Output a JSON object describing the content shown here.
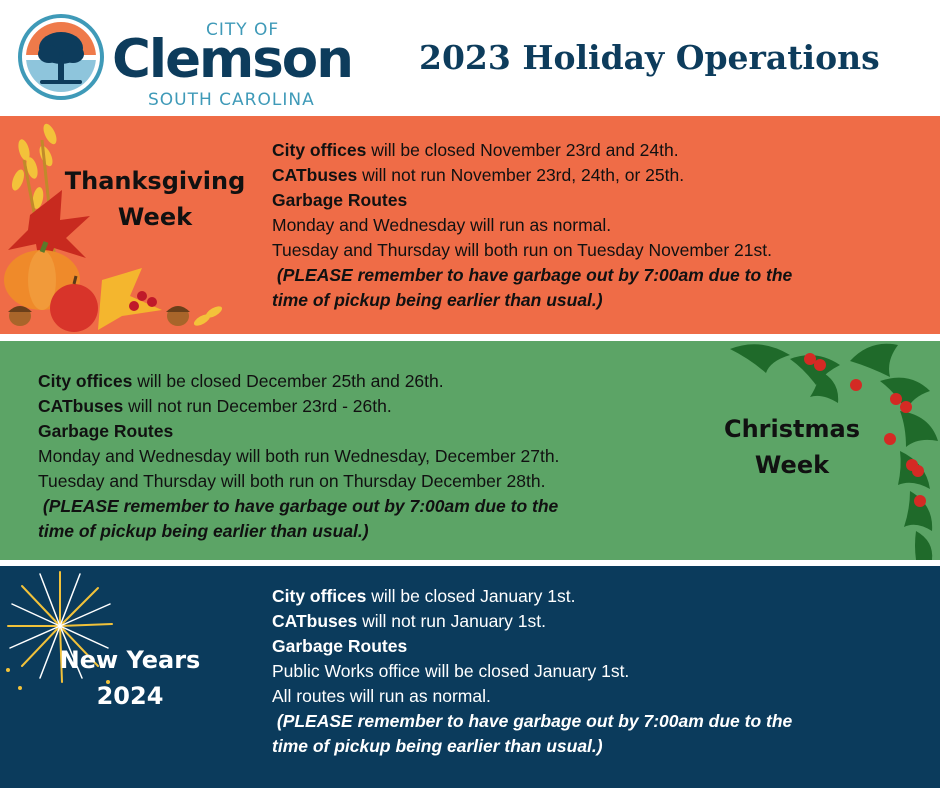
{
  "header": {
    "logo": {
      "city_of": "CITY OF",
      "name": "Clemson",
      "state": "SOUTH CAROLINA"
    },
    "title": "2023 Holiday Operations"
  },
  "colors": {
    "thanksgiving_bg": "#ef6c47",
    "christmas_bg": "#5ca466",
    "newyear_bg": "#0b3b5c",
    "brand_navy": "#0d3c5c",
    "brand_teal": "#3f9ab8"
  },
  "sections": {
    "thanksgiving": {
      "title_line1": "Thanksgiving",
      "title_line2": "Week",
      "offices_label": "City offices",
      "offices_text": " will be closed November 23rd and 24th.",
      "buses_label": "CATbuses",
      "buses_text": " will not run November 23rd, 24th, or 25th.",
      "garbage_label": "Garbage Routes",
      "line1": "Monday and Wednesday will run as normal.",
      "line2": "Tuesday and Thursday will both run on Tuesday November 21st.",
      "note1": " (PLEASE remember to have garbage out by 7:00am due to the",
      "note2": "time of pickup being earlier than usual.)",
      "decoration": "autumn-harvest-icon"
    },
    "christmas": {
      "title_line1": "Christmas",
      "title_line2": "Week",
      "offices_label": "City offices",
      "offices_text": " will be closed December 25th and 26th.",
      "buses_label": "CATbuses",
      "buses_text": " will not run December 23rd - 26th.",
      "garbage_label": "Garbage Routes",
      "line1": "Monday and Wednesday will both run Wednesday, December 27th.",
      "line2": "Tuesday and Thursday will both run on Thursday December 28th.",
      "note1": " (PLEASE remember to have garbage out by 7:00am due to the",
      "note2": "time of pickup being earlier than usual.)",
      "decoration": "holly-icon"
    },
    "newyear": {
      "title_line1": "New Years",
      "title_line2": "2024",
      "offices_label": "City offices",
      "offices_text": " will be closed January 1st.",
      "buses_label": "CATbuses",
      "buses_text": " will not run January 1st.",
      "garbage_label": "Garbage Routes",
      "line1": "Public Works office will be closed January 1st.",
      "line2": "All routes will run as normal.",
      "note1": " (PLEASE remember to have garbage out by 7:00am due to the",
      "note2": "time of pickup being earlier than usual.)",
      "decoration": "firework-icon"
    }
  }
}
